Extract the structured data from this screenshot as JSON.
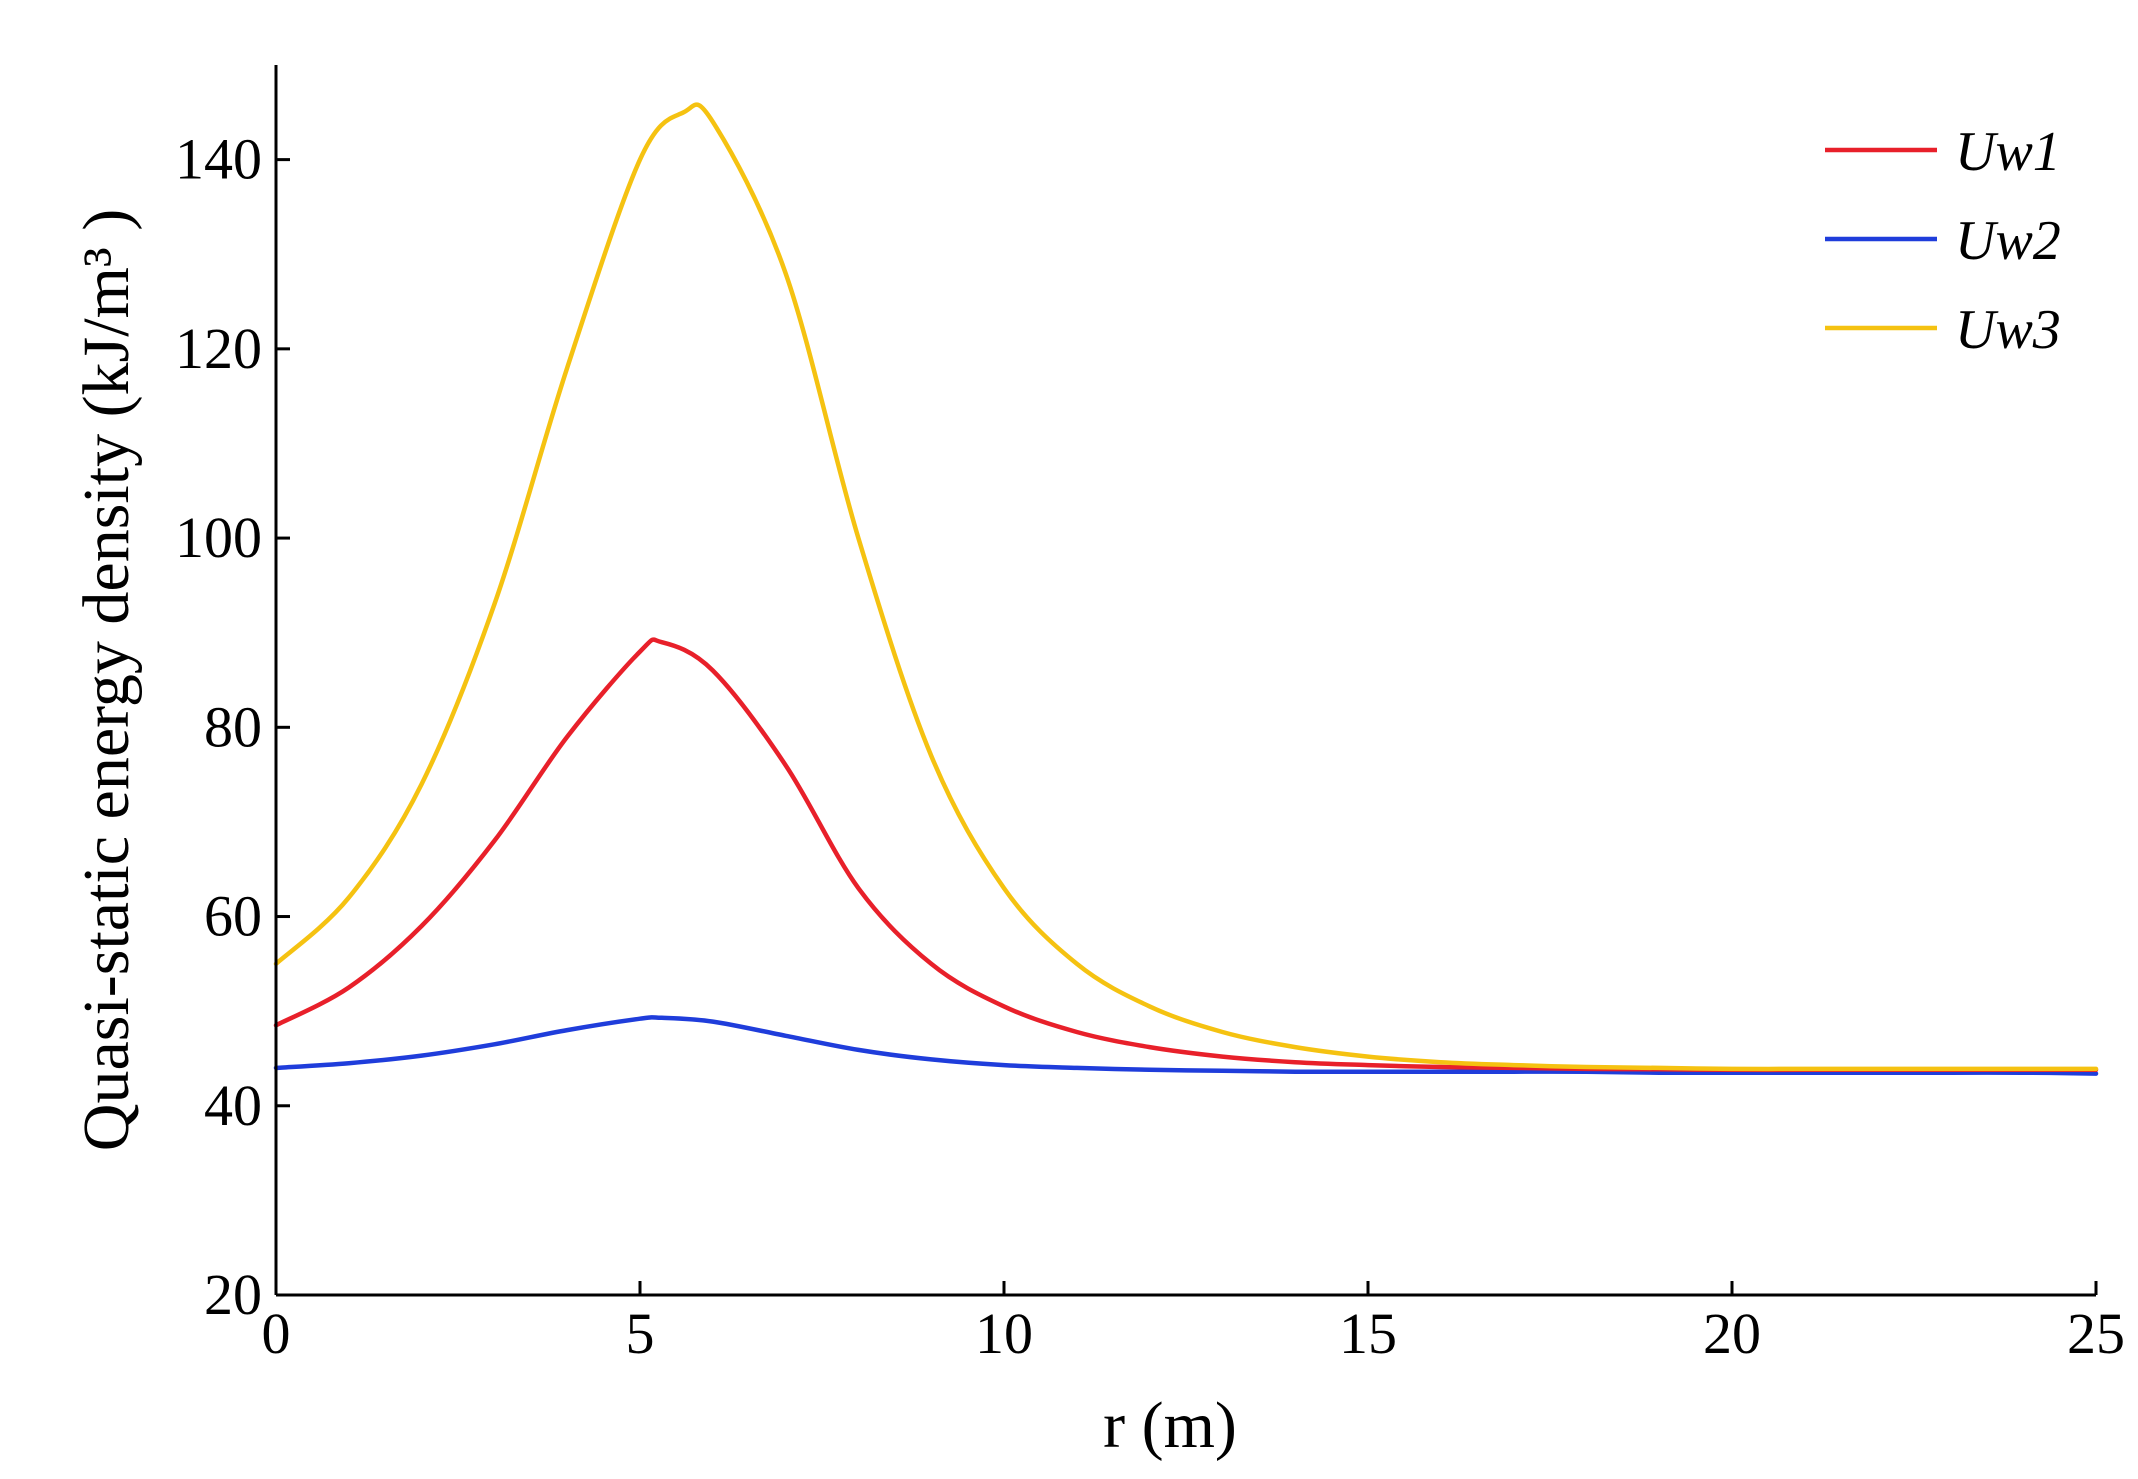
{
  "chart_data": {
    "type": "line",
    "title": "",
    "xlabel": "r  (m)",
    "ylabel": "Quasi-static energy density (kJ/m³ )",
    "xlim": [
      0,
      25
    ],
    "ylim": [
      20,
      150
    ],
    "xticks": [
      0,
      5,
      10,
      15,
      20,
      25
    ],
    "yticks": [
      20,
      40,
      60,
      80,
      100,
      120,
      140
    ],
    "xtick_labels": [
      "0",
      "5",
      "10",
      "15",
      "20",
      "25"
    ],
    "ytick_labels": [
      "20",
      "40",
      "60",
      "80",
      "100",
      "120",
      "140"
    ],
    "grid": false,
    "legend": "top-right",
    "series": [
      {
        "name": "Uw1",
        "color": "#e8202a",
        "x": [
          0,
          1,
          2,
          3,
          4,
          5,
          5.3,
          6,
          7,
          8,
          9,
          10,
          11,
          12,
          13,
          14,
          15,
          16,
          17,
          18,
          19,
          20,
          21,
          22,
          23,
          24,
          25
        ],
        "y": [
          48.5,
          52.5,
          59,
          68,
          79,
          88,
          89,
          86,
          76,
          63,
          55,
          50.5,
          47.8,
          46.2,
          45.2,
          44.6,
          44.3,
          44.1,
          44.0,
          43.9,
          43.85,
          43.8,
          43.8,
          43.8,
          43.8,
          43.8,
          43.8
        ]
      },
      {
        "name": "Uw2",
        "color": "#1f3ddb",
        "x": [
          0,
          1,
          2,
          3,
          4,
          5,
          5.3,
          6,
          7,
          8,
          9,
          10,
          11,
          12,
          13,
          14,
          15,
          16,
          17,
          18,
          19,
          20,
          21,
          22,
          23,
          24,
          25
        ],
        "y": [
          44,
          44.5,
          45.3,
          46.5,
          48,
          49.2,
          49.3,
          48.9,
          47.4,
          45.9,
          44.9,
          44.3,
          44.0,
          43.8,
          43.7,
          43.6,
          43.6,
          43.6,
          43.6,
          43.6,
          43.5,
          43.5,
          43.5,
          43.5,
          43.5,
          43.5,
          43.4
        ]
      },
      {
        "name": "Uw3",
        "color": "#f5c211",
        "x": [
          0,
          1,
          2,
          3,
          4,
          5,
          5.6,
          6,
          7,
          8,
          9,
          10,
          11,
          12,
          13,
          14,
          15,
          16,
          17,
          18,
          19,
          20,
          21,
          22,
          23,
          24,
          25
        ],
        "y": [
          55,
          62,
          74,
          93,
          118,
          140,
          145,
          144,
          128,
          100,
          77,
          63,
          55,
          50.5,
          47.8,
          46.2,
          45.2,
          44.6,
          44.3,
          44.1,
          44.0,
          43.9,
          43.9,
          43.9,
          43.9,
          43.9,
          43.9
        ]
      }
    ]
  }
}
